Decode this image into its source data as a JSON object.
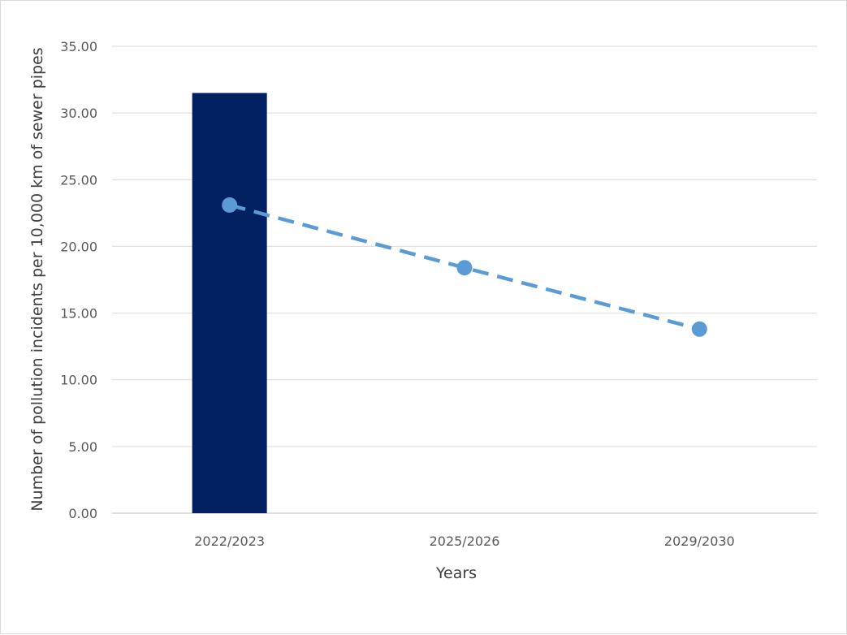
{
  "chart_data": {
    "type": "bar",
    "title": "",
    "xlabel": "Years",
    "ylabel": "Number of pollution incidents per 10,000 km of sewer pipes",
    "categories": [
      "2022/2023",
      "2025/2026",
      "2029/2030"
    ],
    "ylim": [
      0,
      35
    ],
    "yticks": [
      "0.00",
      "5.00",
      "10.00",
      "15.00",
      "20.00",
      "25.00",
      "30.00",
      "35.00"
    ],
    "grid": true,
    "legend": "none",
    "series": [
      {
        "type": "bar",
        "values": [
          31.5,
          null,
          null
        ],
        "color": "#002060"
      },
      {
        "type": "line",
        "style": "dashed",
        "markers": true,
        "values": [
          23.1,
          18.4,
          13.8
        ],
        "color": "#5b9bd5"
      }
    ]
  }
}
